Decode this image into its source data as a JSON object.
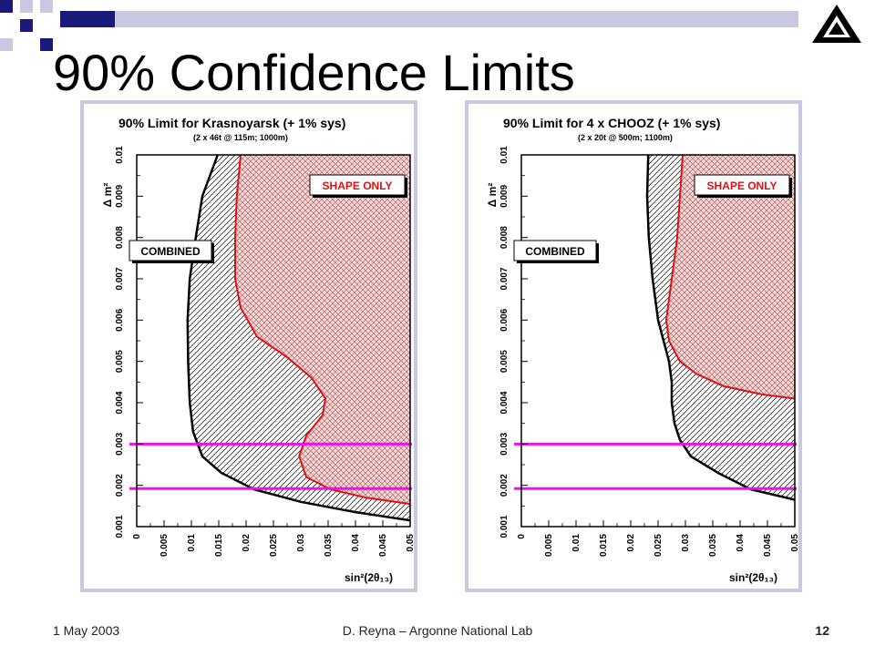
{
  "slide": {
    "title": "90% Confidence Limits",
    "date": "1 May 2003",
    "author": "D. Reyna – Argonne National Lab",
    "page_number": "12",
    "logo_icon": "argonne-logo-icon",
    "colors": {
      "deco_navy": "#1a1a7a",
      "deco_light": "#c8c8e0",
      "panel_border": "#c8c8e0"
    }
  },
  "chart_data": [
    {
      "type": "area",
      "title": "90% Limit for Krasnoyarsk (+ 1% sys)",
      "subtitle": "(2 x 46t @ 115m; 1000m)",
      "xlabel": "sin²(2θ₁₃)",
      "ylabel": "Δ m²",
      "xlim": [
        0,
        0.05
      ],
      "ylim": [
        0.001,
        0.01
      ],
      "x_ticks": [
        "0",
        "0.005",
        "0.01",
        "0.015",
        "0.02",
        "0.025",
        "0.03",
        "0.035",
        "0.04",
        "0.045",
        "0.05"
      ],
      "y_ticks": [
        "0.001",
        "0.002",
        "0.003",
        "0.004",
        "0.005",
        "0.006",
        "0.007",
        "0.008",
        "0.009",
        "0.01"
      ],
      "labels": {
        "shape": "SHAPE ONLY",
        "combined": "COMBINED"
      },
      "series": [
        {
          "name": "COMBINED",
          "color": "#000000",
          "points": [
            [
              0.0148,
              0.01
            ],
            [
              0.012,
              0.009
            ],
            [
              0.0108,
              0.008
            ],
            [
              0.0097,
              0.007
            ],
            [
              0.0093,
              0.006
            ],
            [
              0.0094,
              0.005
            ],
            [
              0.0097,
              0.004
            ],
            [
              0.0103,
              0.0033
            ],
            [
              0.012,
              0.0027
            ],
            [
              0.0155,
              0.0023
            ],
            [
              0.0215,
              0.0019
            ],
            [
              0.03,
              0.0016
            ],
            [
              0.04,
              0.00135
            ],
            [
              0.05,
              0.00115
            ]
          ]
        },
        {
          "name": "SHAPE ONLY",
          "color": "#dd1111",
          "points": [
            [
              0.019,
              0.01
            ],
            [
              0.0183,
              0.009
            ],
            [
              0.018,
              0.008
            ],
            [
              0.018,
              0.007
            ],
            [
              0.019,
              0.0063
            ],
            [
              0.022,
              0.0056
            ],
            [
              0.0275,
              0.0051
            ],
            [
              0.032,
              0.0046
            ],
            [
              0.0345,
              0.0041
            ],
            [
              0.034,
              0.0037
            ],
            [
              0.031,
              0.0032
            ],
            [
              0.0297,
              0.0027
            ],
            [
              0.031,
              0.0022
            ],
            [
              0.0355,
              0.0019
            ],
            [
              0.042,
              0.0017
            ],
            [
              0.05,
              0.00155
            ]
          ]
        }
      ],
      "reference_lines": {
        "color": "#ee11ee",
        "y": [
          0.003,
          0.00192
        ]
      }
    },
    {
      "type": "area",
      "title": "90% Limit for 4 x CHOOZ (+ 1% sys)",
      "subtitle": "(2 x 20t @ 500m; 1100m)",
      "xlabel": "sin²(2θ₁₃)",
      "ylabel": "Δ m²",
      "xlim": [
        0,
        0.05
      ],
      "ylim": [
        0.001,
        0.01
      ],
      "x_ticks": [
        "0",
        "0.005",
        "0.01",
        "0.015",
        "0.02",
        "0.025",
        "0.03",
        "0.035",
        "0.04",
        "0.045",
        "0.05"
      ],
      "y_ticks": [
        "0.001",
        "0.002",
        "0.003",
        "0.004",
        "0.005",
        "0.006",
        "0.007",
        "0.008",
        "0.009",
        "0.01"
      ],
      "labels": {
        "shape": "SHAPE ONLY",
        "combined": "COMBINED"
      },
      "series": [
        {
          "name": "COMBINED",
          "color": "#000000",
          "points": [
            [
              0.0232,
              0.01
            ],
            [
              0.023,
              0.009
            ],
            [
              0.0233,
              0.008
            ],
            [
              0.024,
              0.007
            ],
            [
              0.025,
              0.006
            ],
            [
              0.026,
              0.0055
            ],
            [
              0.027,
              0.005
            ],
            [
              0.0275,
              0.0045
            ],
            [
              0.0275,
              0.004
            ],
            [
              0.028,
              0.0035
            ],
            [
              0.029,
              0.0031
            ],
            [
              0.031,
              0.0027
            ],
            [
              0.036,
              0.0023
            ],
            [
              0.042,
              0.0019
            ],
            [
              0.05,
              0.00165
            ]
          ]
        },
        {
          "name": "SHAPE ONLY",
          "color": "#dd1111",
          "points": [
            [
              0.0295,
              0.01
            ],
            [
              0.029,
              0.009
            ],
            [
              0.0285,
              0.008
            ],
            [
              0.0275,
              0.007
            ],
            [
              0.0265,
              0.006
            ],
            [
              0.027,
              0.0055
            ],
            [
              0.029,
              0.005
            ],
            [
              0.032,
              0.0047
            ],
            [
              0.037,
              0.0044
            ],
            [
              0.044,
              0.0042
            ],
            [
              0.05,
              0.0041
            ]
          ]
        }
      ],
      "reference_lines": {
        "color": "#ee11ee",
        "y": [
          0.003,
          0.00192
        ]
      }
    }
  ]
}
